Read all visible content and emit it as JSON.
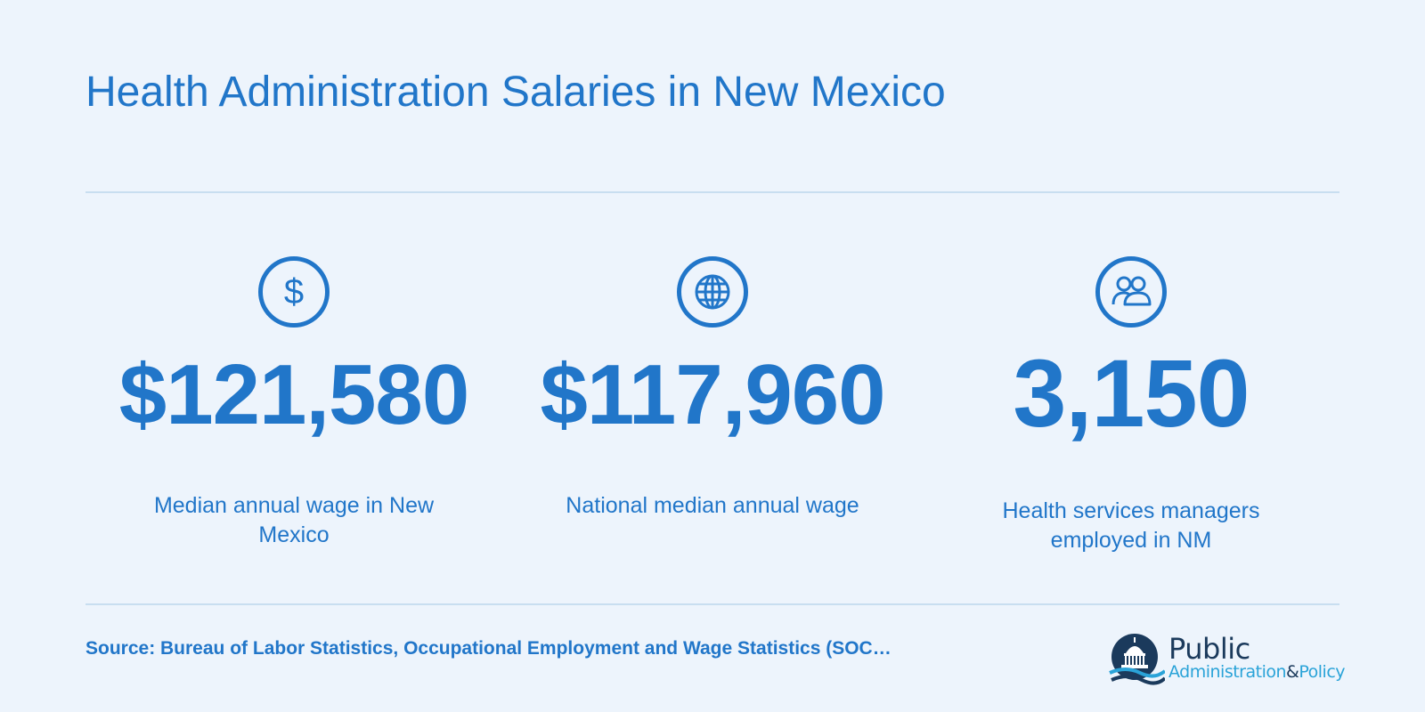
{
  "header": {
    "title": "Health Administration Salaries in New Mexico"
  },
  "stats": [
    {
      "icon": "dollar-icon",
      "value": "$121,580",
      "label": "Median annual wage in New Mexico"
    },
    {
      "icon": "globe-icon",
      "value": "$117,960",
      "label": "National median annual wage"
    },
    {
      "icon": "people-icon",
      "value": "3,150",
      "label": "Health services managers employed in NM"
    }
  ],
  "footer": {
    "source": "Source: Bureau of Labor Statistics, Occupational Employment and Wage Statistics (SOC…",
    "logo": {
      "line1": "Public",
      "word_admin": "Administration",
      "amp": "&",
      "word_policy": "Policy"
    }
  },
  "colors": {
    "background": "#edf4fc",
    "accent": "#2176c9",
    "divider": "#c8def0",
    "logo_dark": "#1b3a5c",
    "logo_light": "#2aa3d8"
  }
}
